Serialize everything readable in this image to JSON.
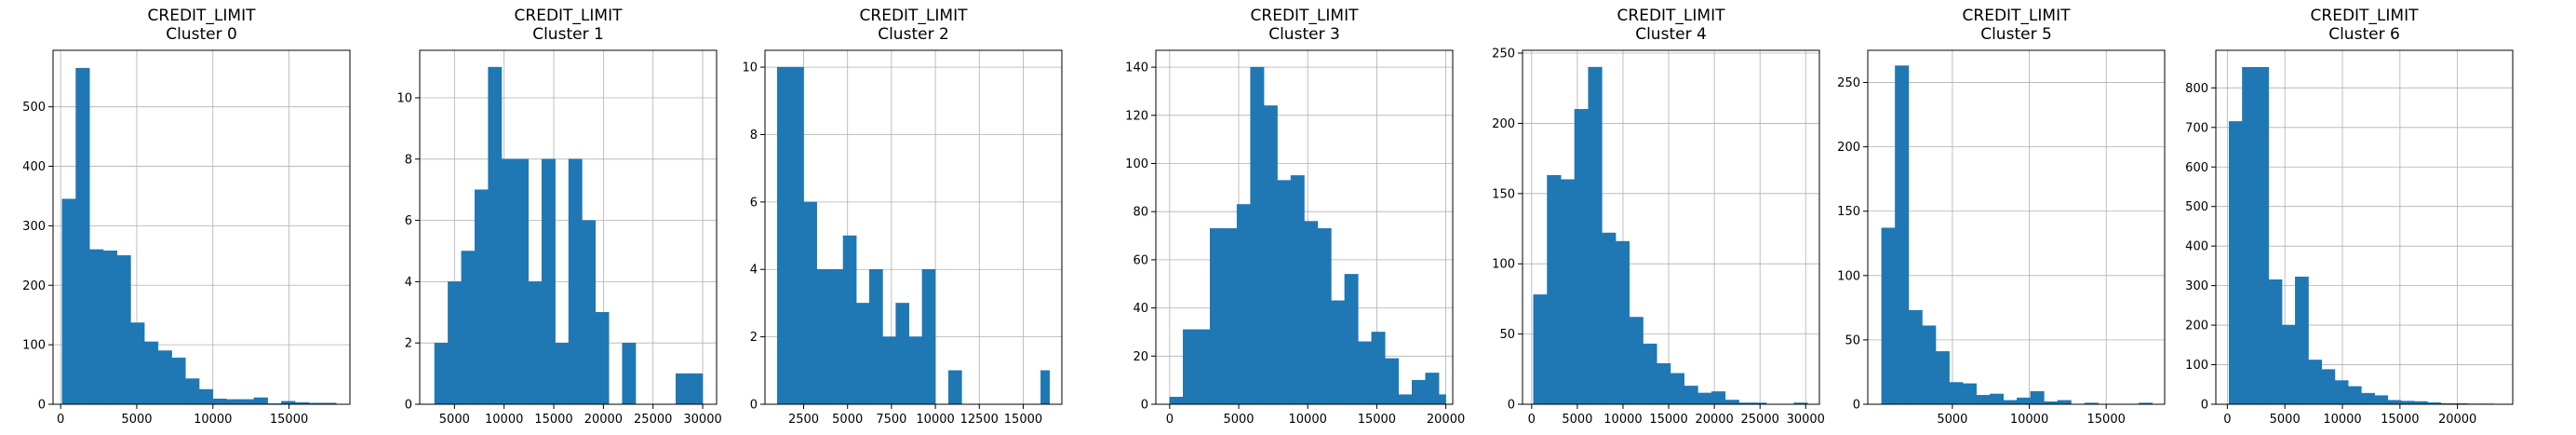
{
  "figure": {
    "bar_color": "#1f77b4",
    "edge_color": "#1f77b4",
    "grid_color": "#b0b0b0",
    "grid": true
  },
  "chart_data": [
    {
      "type": "histogram",
      "title": "CREDIT_LIMIT",
      "subtitle": "Cluster 0",
      "xlim": [
        -500,
        19000
      ],
      "ylim": [
        0,
        595
      ],
      "xticks": [
        0,
        5000,
        10000,
        15000
      ],
      "xtick_labels": [
        "0",
        "5000",
        "10000",
        "15000"
      ],
      "yticks": [
        0,
        100,
        200,
        300,
        400,
        500
      ],
      "ytick_labels": [
        "0",
        "100",
        "200",
        "300",
        "400",
        "500"
      ],
      "bins": [
        {
          "x0": 100,
          "x1": 1000,
          "count": 345
        },
        {
          "x0": 1000,
          "x1": 1900,
          "count": 565
        },
        {
          "x0": 1900,
          "x1": 2800,
          "count": 260
        },
        {
          "x0": 2800,
          "x1": 3700,
          "count": 258
        },
        {
          "x0": 3700,
          "x1": 4600,
          "count": 250
        },
        {
          "x0": 4600,
          "x1": 5500,
          "count": 137
        },
        {
          "x0": 5500,
          "x1": 6400,
          "count": 105
        },
        {
          "x0": 6400,
          "x1": 7300,
          "count": 90
        },
        {
          "x0": 7300,
          "x1": 8200,
          "count": 78
        },
        {
          "x0": 8200,
          "x1": 9100,
          "count": 43
        },
        {
          "x0": 9100,
          "x1": 10000,
          "count": 25
        },
        {
          "x0": 10000,
          "x1": 10900,
          "count": 9
        },
        {
          "x0": 10900,
          "x1": 11800,
          "count": 8
        },
        {
          "x0": 11800,
          "x1": 12700,
          "count": 8
        },
        {
          "x0": 12700,
          "x1": 13600,
          "count": 11
        },
        {
          "x0": 13600,
          "x1": 14500,
          "count": 1
        },
        {
          "x0": 14500,
          "x1": 15400,
          "count": 5
        },
        {
          "x0": 15400,
          "x1": 16300,
          "count": 3
        },
        {
          "x0": 16300,
          "x1": 17200,
          "count": 2
        },
        {
          "x0": 17200,
          "x1": 18100,
          "count": 2
        }
      ]
    },
    {
      "type": "histogram",
      "title": "CREDIT_LIMIT",
      "subtitle": "Cluster 1",
      "xlim": [
        1500,
        31400
      ],
      "ylim": [
        0,
        11.55
      ],
      "xticks": [
        5000,
        10000,
        15000,
        20000,
        25000,
        30000
      ],
      "xtick_labels": [
        "5000",
        "10000",
        "15000",
        "20000",
        "25000",
        "30000"
      ],
      "yticks": [
        0,
        2,
        4,
        6,
        8,
        10
      ],
      "ytick_labels": [
        "0",
        "2",
        "4",
        "6",
        "8",
        "10"
      ],
      "bins": [
        {
          "x0": 3000,
          "x1": 4350,
          "count": 2
        },
        {
          "x0": 4350,
          "x1": 5700,
          "count": 4
        },
        {
          "x0": 5700,
          "x1": 7050,
          "count": 5
        },
        {
          "x0": 7050,
          "x1": 8400,
          "count": 7
        },
        {
          "x0": 8400,
          "x1": 9750,
          "count": 11
        },
        {
          "x0": 9750,
          "x1": 11100,
          "count": 8
        },
        {
          "x0": 11100,
          "x1": 12450,
          "count": 8
        },
        {
          "x0": 12450,
          "x1": 13800,
          "count": 4
        },
        {
          "x0": 13800,
          "x1": 15150,
          "count": 8
        },
        {
          "x0": 15150,
          "x1": 16500,
          "count": 2
        },
        {
          "x0": 16500,
          "x1": 17850,
          "count": 8
        },
        {
          "x0": 17850,
          "x1": 19200,
          "count": 6
        },
        {
          "x0": 19200,
          "x1": 20550,
          "count": 3
        },
        {
          "x0": 20550,
          "x1": 21900,
          "count": 0
        },
        {
          "x0": 21900,
          "x1": 23250,
          "count": 2
        },
        {
          "x0": 23250,
          "x1": 24600,
          "count": 0
        },
        {
          "x0": 24600,
          "x1": 25950,
          "count": 0
        },
        {
          "x0": 25950,
          "x1": 27300,
          "count": 0
        },
        {
          "x0": 27300,
          "x1": 28650,
          "count": 1
        },
        {
          "x0": 28650,
          "x1": 30000,
          "count": 1
        }
      ]
    },
    {
      "type": "histogram",
      "title": "CREDIT_LIMIT",
      "subtitle": "Cluster 2",
      "xlim": [
        300,
        17200
      ],
      "ylim": [
        0,
        10.5
      ],
      "xticks": [
        2500,
        5000,
        7500,
        10000,
        12500,
        15000
      ],
      "xtick_labels": [
        "2500",
        "5000",
        "7500",
        "10000",
        "12500",
        "15000"
      ],
      "yticks": [
        0,
        2,
        4,
        6,
        8,
        10
      ],
      "ytick_labels": [
        "0",
        "2",
        "4",
        "6",
        "8",
        "10"
      ],
      "bins": [
        {
          "x0": 1000,
          "x1": 1750,
          "count": 10
        },
        {
          "x0": 1750,
          "x1": 2500,
          "count": 10
        },
        {
          "x0": 2500,
          "x1": 3250,
          "count": 6
        },
        {
          "x0": 3250,
          "x1": 4000,
          "count": 4
        },
        {
          "x0": 4000,
          "x1": 4750,
          "count": 4
        },
        {
          "x0": 4750,
          "x1": 5500,
          "count": 5
        },
        {
          "x0": 5500,
          "x1": 6250,
          "count": 3
        },
        {
          "x0": 6250,
          "x1": 7000,
          "count": 4
        },
        {
          "x0": 7000,
          "x1": 7750,
          "count": 2
        },
        {
          "x0": 7750,
          "x1": 8500,
          "count": 3
        },
        {
          "x0": 8500,
          "x1": 9250,
          "count": 2
        },
        {
          "x0": 9250,
          "x1": 10000,
          "count": 4
        },
        {
          "x0": 10000,
          "x1": 10750,
          "count": 0
        },
        {
          "x0": 10750,
          "x1": 11500,
          "count": 1
        },
        {
          "x0": 11500,
          "x1": 12250,
          "count": 0
        },
        {
          "x0": 12250,
          "x1": 13000,
          "count": 0
        },
        {
          "x0": 13000,
          "x1": 13750,
          "count": 0
        },
        {
          "x0": 13750,
          "x1": 14500,
          "count": 0
        },
        {
          "x0": 14500,
          "x1": 15250,
          "count": 0
        },
        {
          "x0": 15250,
          "x1": 16000,
          "count": 0
        },
        {
          "x0": 16000,
          "x1": 16500,
          "count": 1
        }
      ]
    },
    {
      "type": "histogram",
      "title": "CREDIT_LIMIT",
      "subtitle": "Cluster 3",
      "xlim": [
        -1000,
        20500
      ],
      "ylim": [
        0,
        147
      ],
      "xticks": [
        0,
        5000,
        10000,
        15000,
        20000
      ],
      "xtick_labels": [
        "0",
        "5000",
        "10000",
        "15000",
        "20000"
      ],
      "yticks": [
        0,
        20,
        40,
        60,
        80,
        100,
        120,
        140
      ],
      "ytick_labels": [
        "0",
        "20",
        "40",
        "60",
        "80",
        "100",
        "120",
        "140"
      ],
      "bins": [
        {
          "x0": 0,
          "x1": 975,
          "count": 3
        },
        {
          "x0": 975,
          "x1": 1950,
          "count": 31
        },
        {
          "x0": 1950,
          "x1": 2925,
          "count": 31
        },
        {
          "x0": 2925,
          "x1": 3900,
          "count": 73
        },
        {
          "x0": 3900,
          "x1": 4875,
          "count": 73
        },
        {
          "x0": 4875,
          "x1": 5850,
          "count": 83
        },
        {
          "x0": 5850,
          "x1": 6825,
          "count": 140
        },
        {
          "x0": 6825,
          "x1": 7800,
          "count": 124
        },
        {
          "x0": 7800,
          "x1": 8775,
          "count": 93
        },
        {
          "x0": 8775,
          "x1": 9750,
          "count": 95
        },
        {
          "x0": 9750,
          "x1": 10725,
          "count": 76
        },
        {
          "x0": 10725,
          "x1": 11700,
          "count": 73
        },
        {
          "x0": 11700,
          "x1": 12675,
          "count": 43
        },
        {
          "x0": 12675,
          "x1": 13650,
          "count": 54
        },
        {
          "x0": 13650,
          "x1": 14625,
          "count": 26
        },
        {
          "x0": 14625,
          "x1": 15600,
          "count": 30
        },
        {
          "x0": 15600,
          "x1": 16575,
          "count": 19
        },
        {
          "x0": 16575,
          "x1": 17550,
          "count": 4
        },
        {
          "x0": 17550,
          "x1": 18525,
          "count": 10
        },
        {
          "x0": 18525,
          "x1": 19500,
          "count": 13
        },
        {
          "x0": 19500,
          "x1": 20000,
          "count": 4
        }
      ]
    },
    {
      "type": "histogram",
      "title": "CREDIT_LIMIT",
      "subtitle": "Cluster 4",
      "xlim": [
        -1000,
        31500
      ],
      "ylim": [
        0,
        252
      ],
      "xticks": [
        0,
        5000,
        10000,
        15000,
        20000,
        25000,
        30000
      ],
      "xtick_labels": [
        "0",
        "5000",
        "10000",
        "15000",
        "20000",
        "25000",
        "30000"
      ],
      "yticks": [
        0,
        50,
        100,
        150,
        200,
        250
      ],
      "ytick_labels": [
        "0",
        "50",
        "100",
        "150",
        "200",
        "250"
      ],
      "bins": [
        {
          "x0": 200,
          "x1": 1700,
          "count": 78
        },
        {
          "x0": 1700,
          "x1": 3200,
          "count": 163
        },
        {
          "x0": 3200,
          "x1": 4700,
          "count": 160
        },
        {
          "x0": 4700,
          "x1": 6200,
          "count": 210
        },
        {
          "x0": 6200,
          "x1": 7700,
          "count": 240
        },
        {
          "x0": 7700,
          "x1": 9200,
          "count": 122
        },
        {
          "x0": 9200,
          "x1": 10700,
          "count": 116
        },
        {
          "x0": 10700,
          "x1": 12200,
          "count": 62
        },
        {
          "x0": 12200,
          "x1": 13700,
          "count": 43
        },
        {
          "x0": 13700,
          "x1": 15200,
          "count": 29
        },
        {
          "x0": 15200,
          "x1": 16700,
          "count": 22
        },
        {
          "x0": 16700,
          "x1": 18200,
          "count": 13
        },
        {
          "x0": 18200,
          "x1": 19700,
          "count": 8
        },
        {
          "x0": 19700,
          "x1": 21200,
          "count": 9
        },
        {
          "x0": 21200,
          "x1": 22700,
          "count": 3
        },
        {
          "x0": 22700,
          "x1": 24200,
          "count": 1
        },
        {
          "x0": 24200,
          "x1": 25700,
          "count": 1
        },
        {
          "x0": 25700,
          "x1": 27200,
          "count": 0
        },
        {
          "x0": 27200,
          "x1": 28700,
          "count": 0
        },
        {
          "x0": 28700,
          "x1": 30200,
          "count": 1
        }
      ]
    },
    {
      "type": "histogram",
      "title": "CREDIT_LIMIT",
      "subtitle": "Cluster 5",
      "xlim": [
        -500,
        18800
      ],
      "ylim": [
        0,
        275
      ],
      "xticks": [
        5000,
        10000,
        15000
      ],
      "xtick_labels": [
        "5000",
        "10000",
        "15000"
      ],
      "yticks": [
        0,
        50,
        100,
        150,
        200,
        250
      ],
      "ytick_labels": [
        "0",
        "50",
        "100",
        "150",
        "200",
        "250"
      ],
      "bins": [
        {
          "x0": 400,
          "x1": 1280,
          "count": 137
        },
        {
          "x0": 1280,
          "x1": 2160,
          "count": 263
        },
        {
          "x0": 2160,
          "x1": 3040,
          "count": 73
        },
        {
          "x0": 3040,
          "x1": 3920,
          "count": 61
        },
        {
          "x0": 3920,
          "x1": 4800,
          "count": 41
        },
        {
          "x0": 4800,
          "x1": 5680,
          "count": 17
        },
        {
          "x0": 5680,
          "x1": 6560,
          "count": 16
        },
        {
          "x0": 6560,
          "x1": 7440,
          "count": 7
        },
        {
          "x0": 7440,
          "x1": 8320,
          "count": 8
        },
        {
          "x0": 8320,
          "x1": 9200,
          "count": 3
        },
        {
          "x0": 9200,
          "x1": 10080,
          "count": 5
        },
        {
          "x0": 10080,
          "x1": 10960,
          "count": 10
        },
        {
          "x0": 10960,
          "x1": 11840,
          "count": 2
        },
        {
          "x0": 11840,
          "x1": 12720,
          "count": 3
        },
        {
          "x0": 12720,
          "x1": 13600,
          "count": 0
        },
        {
          "x0": 13600,
          "x1": 14480,
          "count": 1
        },
        {
          "x0": 14480,
          "x1": 15360,
          "count": 0
        },
        {
          "x0": 15360,
          "x1": 16240,
          "count": 0
        },
        {
          "x0": 16240,
          "x1": 17120,
          "count": 0
        },
        {
          "x0": 17120,
          "x1": 18000,
          "count": 1
        }
      ]
    },
    {
      "type": "histogram",
      "title": "CREDIT_LIMIT",
      "subtitle": "Cluster 6",
      "xlim": [
        -1000,
        24800
      ],
      "ylim": [
        0,
        895
      ],
      "xticks": [
        0,
        5000,
        10000,
        15000,
        20000
      ],
      "xtick_labels": [
        "0",
        "5000",
        "10000",
        "15000",
        "20000"
      ],
      "yticks": [
        0,
        100,
        200,
        300,
        400,
        500,
        600,
        700,
        800
      ],
      "ytick_labels": [
        "0",
        "100",
        "200",
        "300",
        "400",
        "500",
        "600",
        "700",
        "800"
      ],
      "bins": [
        {
          "x0": 150,
          "x1": 1300,
          "count": 715
        },
        {
          "x0": 1300,
          "x1": 2450,
          "count": 852
        },
        {
          "x0": 2450,
          "x1": 3600,
          "count": 852
        },
        {
          "x0": 3600,
          "x1": 4750,
          "count": 315
        },
        {
          "x0": 4750,
          "x1": 5900,
          "count": 200
        },
        {
          "x0": 5900,
          "x1": 7050,
          "count": 322
        },
        {
          "x0": 7050,
          "x1": 8200,
          "count": 112
        },
        {
          "x0": 8200,
          "x1": 9350,
          "count": 88
        },
        {
          "x0": 9350,
          "x1": 10500,
          "count": 60
        },
        {
          "x0": 10500,
          "x1": 11650,
          "count": 45
        },
        {
          "x0": 11650,
          "x1": 12800,
          "count": 28
        },
        {
          "x0": 12800,
          "x1": 13950,
          "count": 22
        },
        {
          "x0": 13950,
          "x1": 15100,
          "count": 10
        },
        {
          "x0": 15100,
          "x1": 16250,
          "count": 8
        },
        {
          "x0": 16250,
          "x1": 17400,
          "count": 7
        },
        {
          "x0": 17400,
          "x1": 18550,
          "count": 4
        },
        {
          "x0": 18550,
          "x1": 19700,
          "count": 2
        },
        {
          "x0": 19700,
          "x1": 20850,
          "count": 2
        },
        {
          "x0": 20850,
          "x1": 22000,
          "count": 1
        },
        {
          "x0": 22000,
          "x1": 23150,
          "count": 1
        }
      ]
    }
  ]
}
